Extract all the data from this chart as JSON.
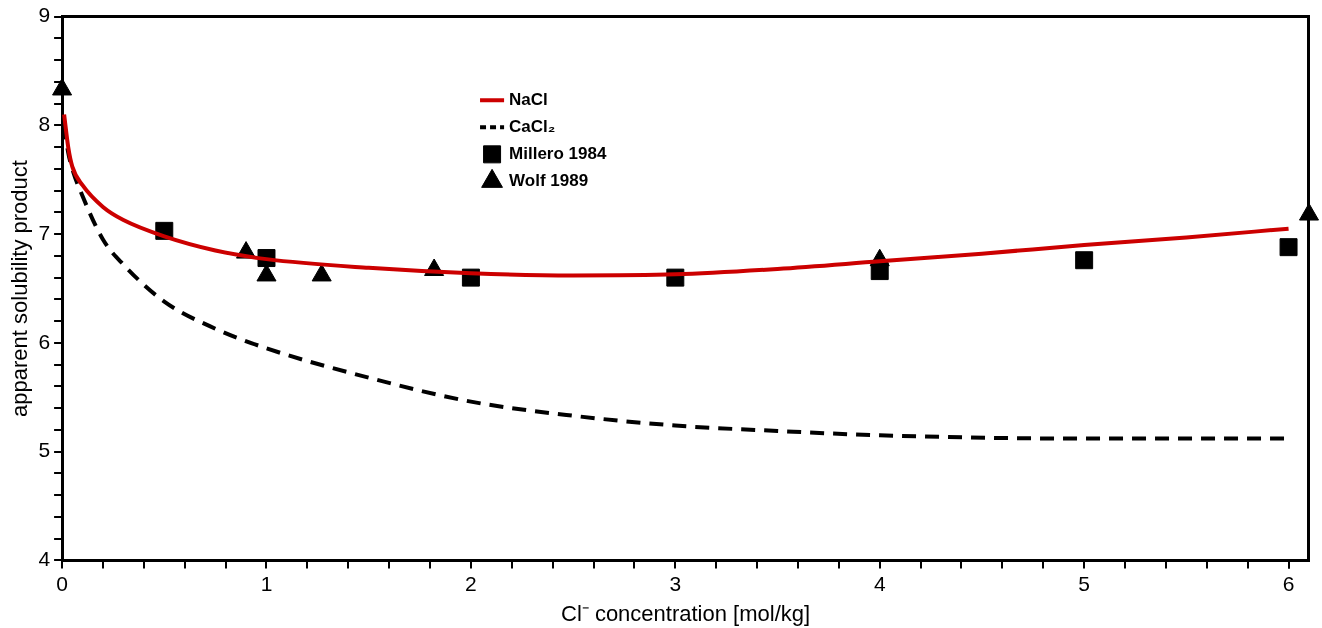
{
  "chart_data": {
    "type": "line",
    "xlabel": "Cl⁻ concentration [mol/kg]",
    "ylabel": "apparent solubility product",
    "xlim": [
      0,
      6.1
    ],
    "ylim": [
      4,
      9
    ],
    "xticks": [
      0,
      {
        "value": 0.2,
        "label": null
      },
      {
        "value": 0.4,
        "label": null
      },
      {
        "value": 0.6,
        "label": null
      },
      {
        "value": 0.8,
        "label": null
      },
      1,
      {
        "value": 1.2,
        "label": null
      },
      {
        "value": 1.4,
        "label": null
      },
      {
        "value": 1.6,
        "label": null
      },
      {
        "value": 1.8,
        "label": null
      },
      2,
      {
        "value": 2.2,
        "label": null
      },
      {
        "value": 2.4,
        "label": null
      },
      {
        "value": 2.6,
        "label": null
      },
      {
        "value": 2.8,
        "label": null
      },
      3,
      {
        "value": 3.2,
        "label": null
      },
      {
        "value": 3.4,
        "label": null
      },
      {
        "value": 3.6,
        "label": null
      },
      {
        "value": 3.8,
        "label": null
      },
      4,
      {
        "value": 4.2,
        "label": null
      },
      {
        "value": 4.4,
        "label": null
      },
      {
        "value": 4.6,
        "label": null
      },
      {
        "value": 4.8,
        "label": null
      },
      5,
      {
        "value": 5.2,
        "label": null
      },
      {
        "value": 5.4,
        "label": null
      },
      {
        "value": 5.6,
        "label": null
      },
      {
        "value": 5.8,
        "label": null
      },
      6,
      {
        "value": 6,
        "label": null
      }
    ],
    "yticks": [
      4,
      {
        "value": 4.2,
        "label": null
      },
      {
        "value": 4.4,
        "label": null
      },
      {
        "value": 4.6,
        "label": null
      },
      {
        "value": 4.8,
        "label": null
      },
      5,
      {
        "value": 5.2,
        "label": null
      },
      {
        "value": 5.4,
        "label": null
      },
      {
        "value": 5.6,
        "label": null
      },
      {
        "value": 5.8,
        "label": null
      },
      6,
      {
        "value": 6.2,
        "label": null
      },
      {
        "value": 6.4,
        "label": null
      },
      {
        "value": 6.6,
        "label": null
      },
      {
        "value": 6.8,
        "label": null
      },
      7,
      {
        "value": 7.2,
        "label": null
      },
      {
        "value": 7.4,
        "label": null
      },
      {
        "value": 7.6,
        "label": null
      },
      {
        "value": 7.8,
        "label": null
      },
      8,
      {
        "value": 8.2,
        "label": null
      },
      {
        "value": 8.4,
        "label": null
      },
      {
        "value": 8.6,
        "label": null
      },
      {
        "value": 8.8,
        "label": null
      },
      9
    ],
    "legend": "top",
    "series": [
      {
        "name": "NaCl",
        "type": "line",
        "color": "#cc0000",
        "line_style": "solid",
        "marker": "none",
        "x": [
          0.01,
          0.03,
          0.05,
          0.1,
          0.2,
          0.3,
          0.5,
          0.75,
          1,
          1.5,
          2,
          2.5,
          3,
          3.5,
          4,
          4.5,
          5,
          5.5,
          6
        ],
        "values": [
          8.1,
          7.8,
          7.62,
          7.45,
          7.25,
          7.13,
          6.98,
          6.85,
          6.77,
          6.69,
          6.64,
          6.62,
          6.63,
          6.68,
          6.75,
          6.82,
          6.9,
          6.97,
          7.05
        ]
      },
      {
        "name": "CaCl₂",
        "type": "line",
        "color": "#000000",
        "line_style": "dashed",
        "marker": "none",
        "x": [
          0.01,
          0.03,
          0.05,
          0.1,
          0.2,
          0.3,
          0.5,
          0.75,
          1,
          1.5,
          2,
          2.5,
          3,
          3.5,
          4,
          5,
          6
        ],
        "values": [
          8.0,
          7.75,
          7.6,
          7.35,
          6.95,
          6.72,
          6.38,
          6.13,
          5.95,
          5.68,
          5.46,
          5.33,
          5.24,
          5.19,
          5.15,
          5.12,
          5.12
        ]
      },
      {
        "name": "Millero 1984",
        "type": "scatter",
        "color": "#000000",
        "marker": "square",
        "x": [
          0.5,
          1,
          2,
          3,
          4,
          5,
          6
        ],
        "values": [
          7.03,
          6.78,
          6.6,
          6.6,
          6.66,
          6.76,
          6.88
        ]
      },
      {
        "name": "Wolf 1989",
        "type": "scatter",
        "color": "#000000",
        "marker": "triangle",
        "x": [
          0,
          0.9,
          1,
          1.27,
          1.82,
          4,
          6.1
        ],
        "values": [
          8.33,
          6.83,
          6.62,
          6.62,
          6.67,
          6.76,
          7.18
        ]
      }
    ]
  }
}
